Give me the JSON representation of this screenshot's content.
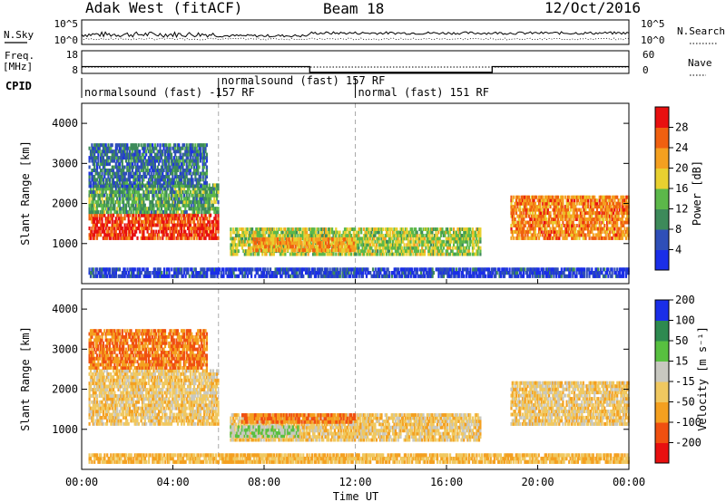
{
  "header": {
    "station": "Adak West (fitACF)",
    "beam": "Beam 18",
    "date": "12/Oct/2016"
  },
  "labels": {
    "nsky": "N.Sky",
    "nsearch": "N.Search",
    "freq": "Freq.",
    "freq_unit": "[MHz]",
    "nave": "Nave",
    "cpid": "CPID",
    "xlabel": "Time UT",
    "ylabel": "Slant Range [km]",
    "power_label": "Power [dB]",
    "velocity_label": "Velocity [m s⁻¹]"
  },
  "noise_axis": {
    "top": "10^5",
    "bottom": "10^0"
  },
  "freq_axis": {
    "top": "18",
    "bottom": "8"
  },
  "nave_axis": {
    "top": "60",
    "bottom": "0"
  },
  "cpid_segments": [
    {
      "label": "normalsound (fast) -157 RF",
      "start_hr": 0.0,
      "end_hr": 6.0
    },
    {
      "label": "normalsound (fast) 157 RF",
      "start_hr": 6.0,
      "end_hr": 12.0
    },
    {
      "label": "normal (fast) 151 RF",
      "start_hr": 12.0,
      "end_hr": 24.0
    }
  ],
  "x_ticks": [
    "00:00",
    "04:00",
    "08:00",
    "12:00",
    "16:00",
    "20:00",
    "00:00"
  ],
  "y_ticks": [
    "1000",
    "2000",
    "3000",
    "4000"
  ],
  "power_scale": {
    "ticks": [
      "4",
      "8",
      "12",
      "16",
      "20",
      "24",
      "28"
    ],
    "colors": [
      "#1a2ee8",
      "#2f4fb8",
      "#3d8a5a",
      "#5cb84a",
      "#e8d030",
      "#f4a020",
      "#f06010",
      "#e81010"
    ]
  },
  "velocity_scale": {
    "ticks": [
      "-200",
      "-100",
      "-50",
      "-15",
      "15",
      "50",
      "100",
      "200"
    ],
    "colors": [
      "#e81010",
      "#f05010",
      "#f4a020",
      "#f0c860",
      "#c8c8c0",
      "#58c040",
      "#2e8a50",
      "#1a2ee8"
    ]
  },
  "chart_data": {
    "type": "heatmap",
    "title": "Adak West (fitACF)  Beam 18  12/Oct/2016",
    "xlabel": "Time UT",
    "ylabel": "Slant Range [km]",
    "xlim": [
      0,
      24
    ],
    "ylim": [
      0,
      4500
    ],
    "frequency_MHz": [
      {
        "start_hr": 0.0,
        "end_hr": 10.0,
        "value": 11
      },
      {
        "start_hr": 10.0,
        "end_hr": 18.0,
        "value": 8.5
      },
      {
        "start_hr": 18.0,
        "end_hr": 24.0,
        "value": 11
      }
    ],
    "panels": [
      {
        "quantity": "Power [dB]",
        "scale": [
          0,
          30
        ],
        "regions": [
          {
            "t0": 0.3,
            "t1": 6.0,
            "r0": 1100,
            "r1": 1750,
            "value": 28
          },
          {
            "t0": 0.3,
            "t1": 6.0,
            "r0": 1750,
            "r1": 2500,
            "value": 12
          },
          {
            "t0": 0.3,
            "t1": 5.5,
            "r0": 2400,
            "r1": 3500,
            "value": 8
          },
          {
            "t0": 6.5,
            "t1": 17.5,
            "r0": 700,
            "r1": 1400,
            "value": 16
          },
          {
            "t0": 7.5,
            "t1": 12.0,
            "r0": 800,
            "r1": 1150,
            "value": 22
          },
          {
            "t0": 18.8,
            "t1": 24.0,
            "r0": 1100,
            "r1": 2200,
            "value": 24
          },
          {
            "t0": 0.3,
            "t1": 24.0,
            "r0": 150,
            "r1": 400,
            "value": 4
          }
        ]
      },
      {
        "quantity": "Velocity [m/s]",
        "scale": [
          -200,
          200
        ],
        "regions": [
          {
            "t0": 0.3,
            "t1": 6.0,
            "r0": 1100,
            "r1": 2500,
            "value": 0
          },
          {
            "t0": 0.3,
            "t1": 5.5,
            "r0": 2500,
            "r1": 3500,
            "value": -50
          },
          {
            "t0": 6.5,
            "t1": 17.5,
            "r0": 700,
            "r1": 1400,
            "value": 0
          },
          {
            "t0": 6.5,
            "t1": 9.5,
            "r0": 800,
            "r1": 1100,
            "value": 50
          },
          {
            "t0": 7.0,
            "t1": 12.0,
            "r0": 1150,
            "r1": 1400,
            "value": -50
          },
          {
            "t0": 18.8,
            "t1": 24.0,
            "r0": 1100,
            "r1": 2200,
            "value": 0
          },
          {
            "t0": 0.3,
            "t1": 24.0,
            "r0": 150,
            "r1": 400,
            "value": -15
          }
        ]
      }
    ]
  }
}
